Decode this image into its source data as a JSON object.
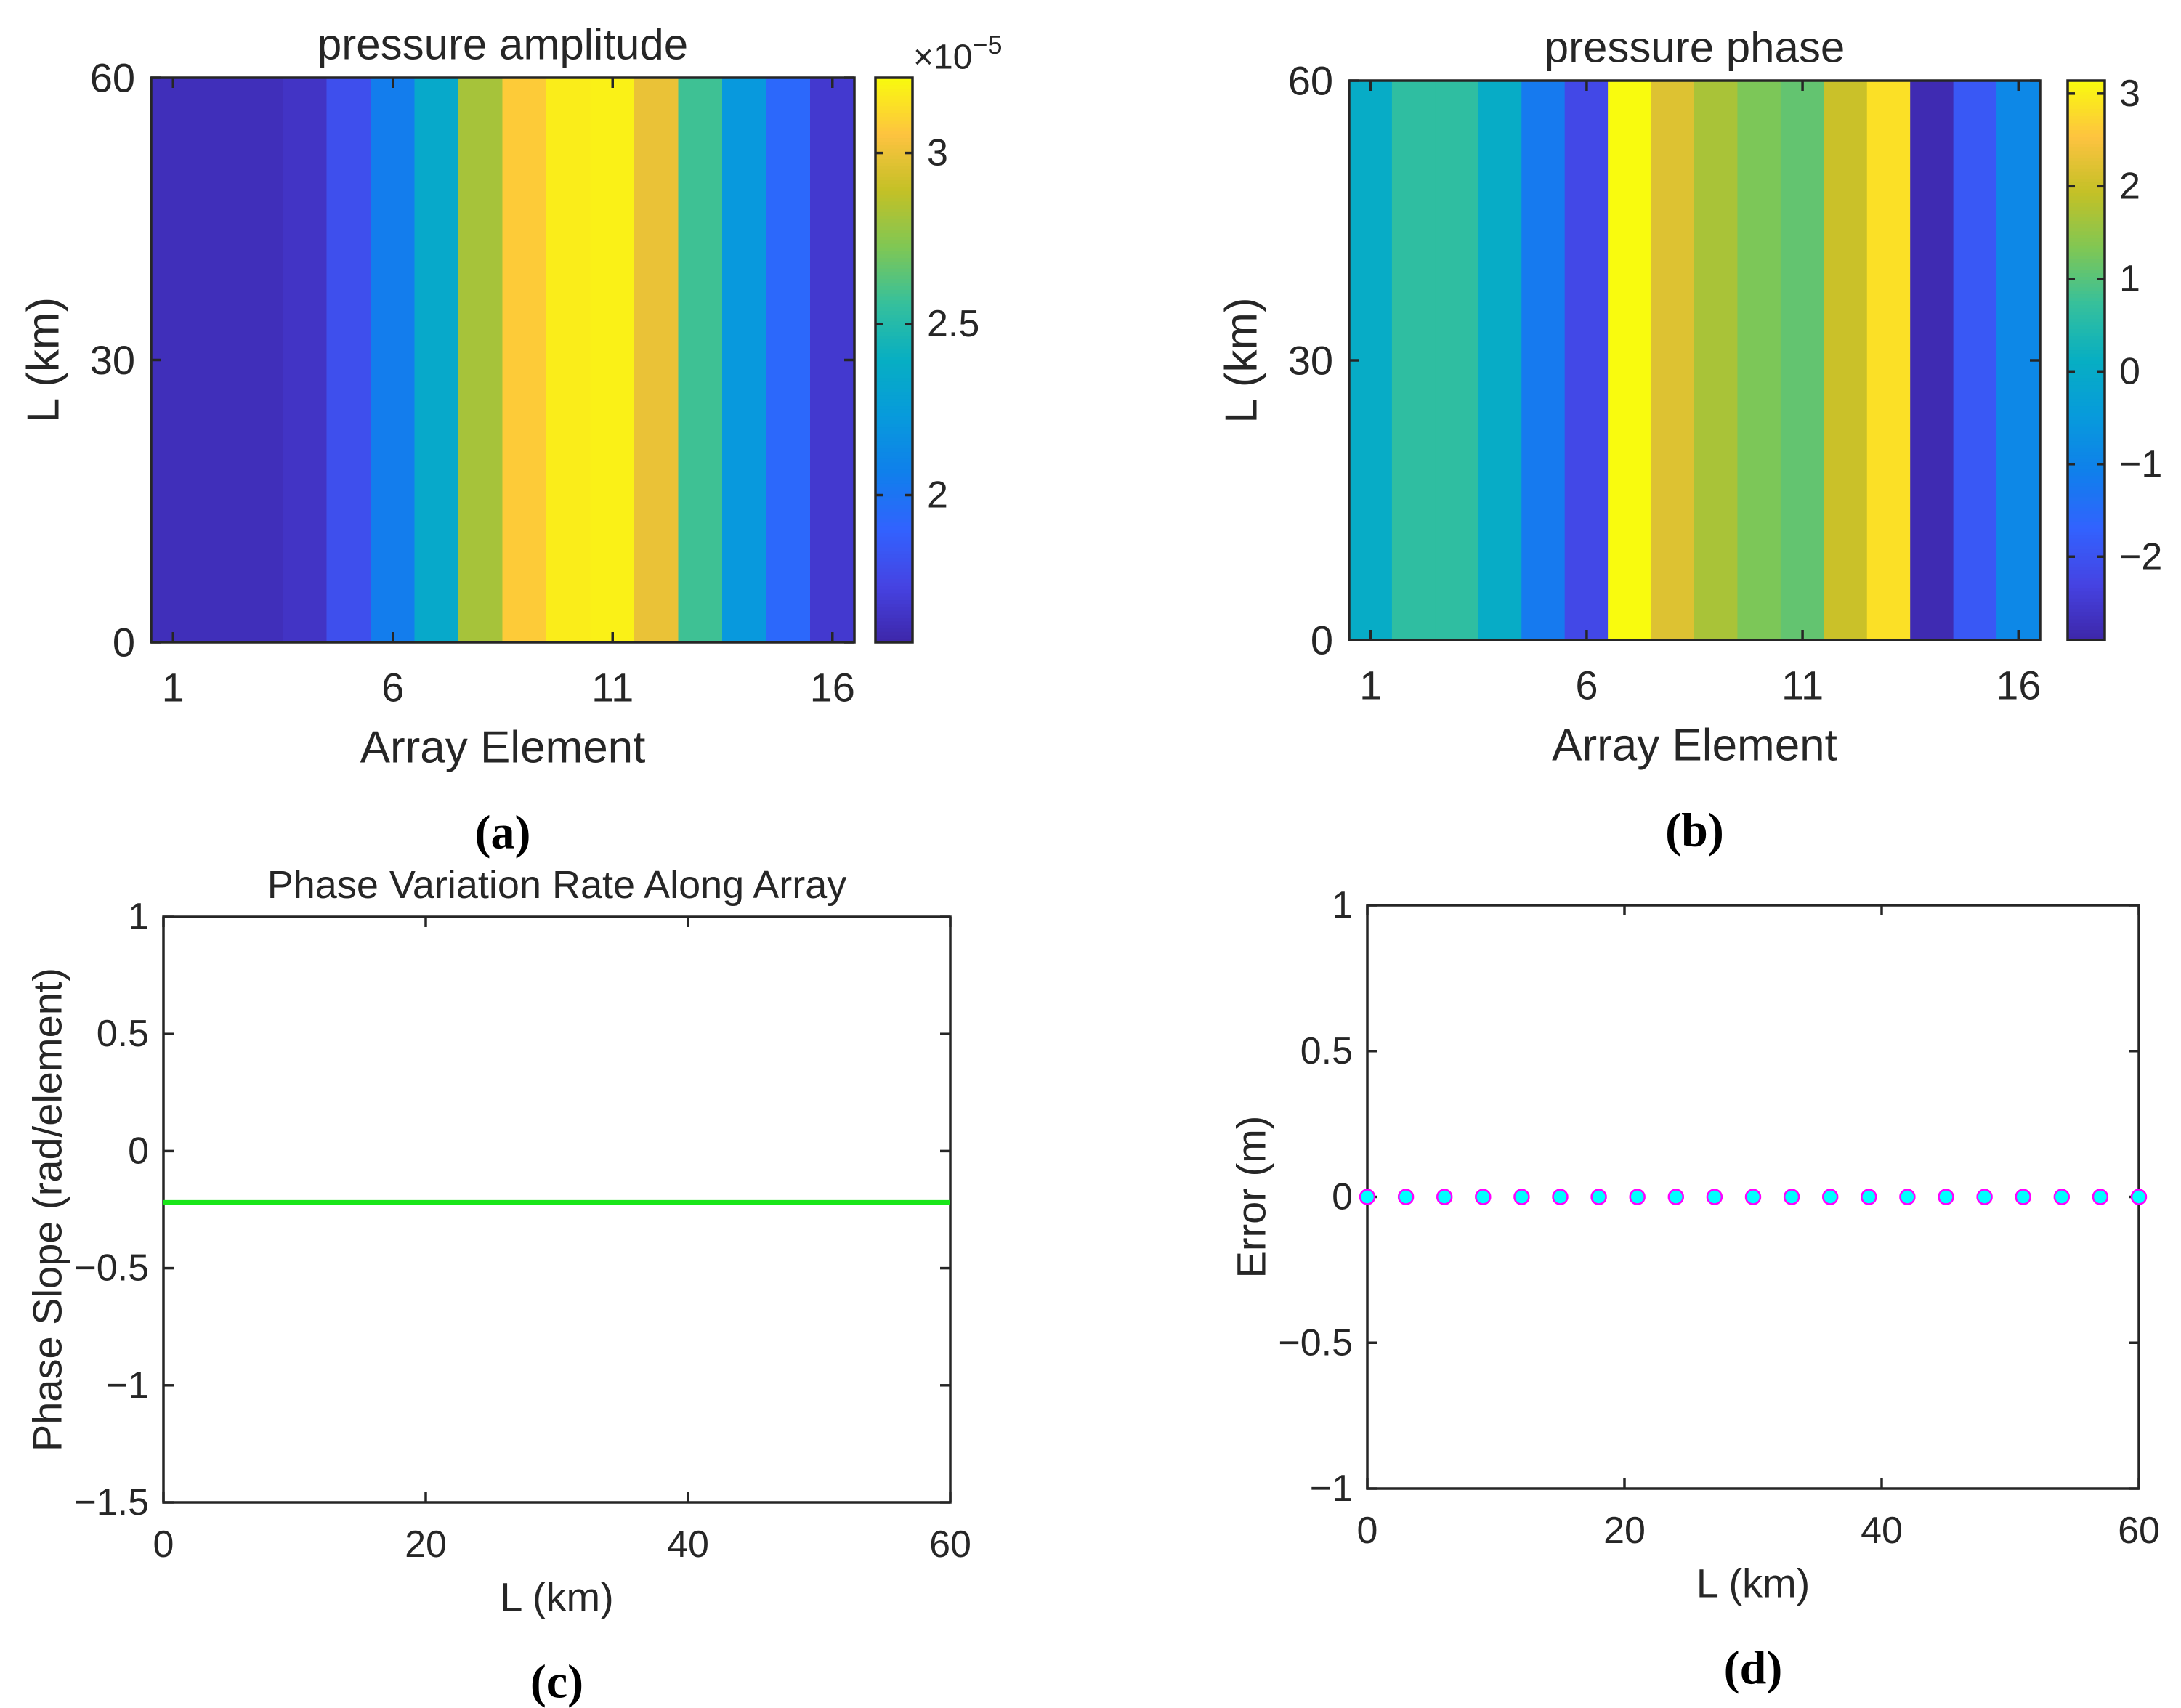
{
  "chart_data": [
    {
      "type": "heatmap",
      "panel_label": "(a)",
      "title": "pressure amplitude",
      "xlabel": "Array Element",
      "ylabel": "L (km)",
      "x_categories": [
        1,
        2,
        3,
        4,
        5,
        6,
        7,
        8,
        9,
        10,
        11,
        12,
        13,
        14,
        15,
        16
      ],
      "xticks": [
        1,
        6,
        11,
        16
      ],
      "xtick_labels": [
        "1",
        "6",
        "11",
        "16"
      ],
      "ylim": [
        0,
        60
      ],
      "yticks": [
        0,
        30,
        60
      ],
      "ytick_labels": [
        "0",
        "30",
        "60"
      ],
      "values_by_element": [
        1.62e-05,
        1.62e-05,
        1.62e-05,
        1.65e-05,
        1.8e-05,
        2.05e-05,
        2.35e-05,
        2.82e-05,
        3.08e-05,
        3.18e-05,
        3.19e-05,
        3e-05,
        2.58e-05,
        2.22e-05,
        1.93e-05,
        1.68e-05
      ],
      "colorbar": {
        "range": [
          1.57e-05,
          3.22e-05
        ],
        "ticks": [
          2e-05,
          2.5e-05,
          3e-05
        ],
        "tick_labels": [
          "2",
          "2.5",
          "3"
        ],
        "exponent_label": "×10",
        "exponent_power": "−5"
      },
      "colormap": "parula"
    },
    {
      "type": "heatmap",
      "panel_label": "(b)",
      "title": "pressure phase",
      "xlabel": "Array Element",
      "ylabel": "L (km)",
      "x_categories": [
        1,
        2,
        3,
        4,
        5,
        6,
        7,
        8,
        9,
        10,
        11,
        12,
        13,
        14,
        15,
        16
      ],
      "xticks": [
        1,
        6,
        11,
        16
      ],
      "xtick_labels": [
        "1",
        "6",
        "11",
        "16"
      ],
      "ylim": [
        0,
        60
      ],
      "yticks": [
        0,
        30,
        60
      ],
      "ytick_labels": [
        "0",
        "30",
        "60"
      ],
      "values_by_element": [
        0.05,
        0.65,
        0.65,
        0.05,
        -1.2,
        -2.2,
        3.14,
        2.2,
        1.7,
        1.3,
        1.1,
        2.0,
        2.85,
        -2.8,
        -1.9,
        -0.9
      ],
      "colorbar": {
        "range": [
          -2.9,
          3.14
        ],
        "ticks": [
          -2,
          -1,
          0,
          1,
          2,
          3
        ],
        "tick_labels": [
          "−2",
          "−1",
          "0",
          "1",
          "2",
          "3"
        ]
      },
      "colormap": "parula"
    },
    {
      "type": "line",
      "panel_label": "(c)",
      "title": "Phase Variation Rate Along Array",
      "xlabel": "L (km)",
      "ylabel": "Phase Slope (rad/element)",
      "xlim": [
        0,
        60
      ],
      "ylim": [
        -1.5,
        1
      ],
      "xticks": [
        0,
        20,
        40,
        60
      ],
      "xtick_labels": [
        "0",
        "20",
        "40",
        "60"
      ],
      "yticks": [
        -1.5,
        -1,
        -0.5,
        0,
        0.5,
        1
      ],
      "ytick_labels": [
        "−1.5",
        "−1",
        "−0.5",
        "0",
        "0.5",
        "1"
      ],
      "series": [
        {
          "x": [
            0,
            60
          ],
          "y": [
            -0.22,
            -0.22
          ],
          "color": "#19e619"
        }
      ]
    },
    {
      "type": "scatter",
      "panel_label": "(d)",
      "title": "",
      "xlabel": "L (km)",
      "ylabel": "Error (m)",
      "xlim": [
        0,
        60
      ],
      "ylim": [
        -1,
        1
      ],
      "xticks": [
        0,
        20,
        40,
        60
      ],
      "xtick_labels": [
        "0",
        "20",
        "40",
        "60"
      ],
      "yticks": [
        -1,
        -0.5,
        0,
        0.5,
        1
      ],
      "ytick_labels": [
        "−1",
        "−0.5",
        "0",
        "0.5",
        "1"
      ],
      "series": [
        {
          "x": [
            0,
            3,
            6,
            9,
            12,
            15,
            18,
            21,
            24,
            27,
            30,
            33,
            36,
            39,
            42,
            45,
            48,
            51,
            54,
            57,
            60
          ],
          "y": [
            0,
            0,
            0,
            0,
            0,
            0,
            0,
            0,
            0,
            0,
            0,
            0,
            0,
            0,
            0,
            0,
            0,
            0,
            0,
            0,
            0
          ],
          "marker_fill": "#00ffff",
          "marker_edge": "#ff00ff"
        }
      ]
    }
  ]
}
